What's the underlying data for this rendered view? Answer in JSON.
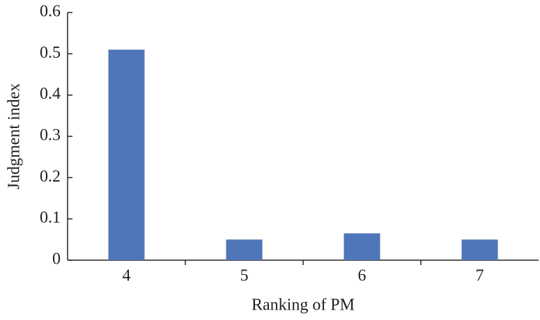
{
  "chart_data": {
    "type": "bar",
    "categories": [
      "4",
      "5",
      "6",
      "7"
    ],
    "values": [
      0.51,
      0.05,
      0.065,
      0.05
    ],
    "color": "#4f76b8",
    "xlabel": "Ranking of PM",
    "ylabel": "Judgment index",
    "ylim": [
      0,
      0.6
    ],
    "yticks": [
      0,
      0.1,
      0.2,
      0.3,
      0.4,
      0.5,
      0.6
    ],
    "grid": false
  }
}
